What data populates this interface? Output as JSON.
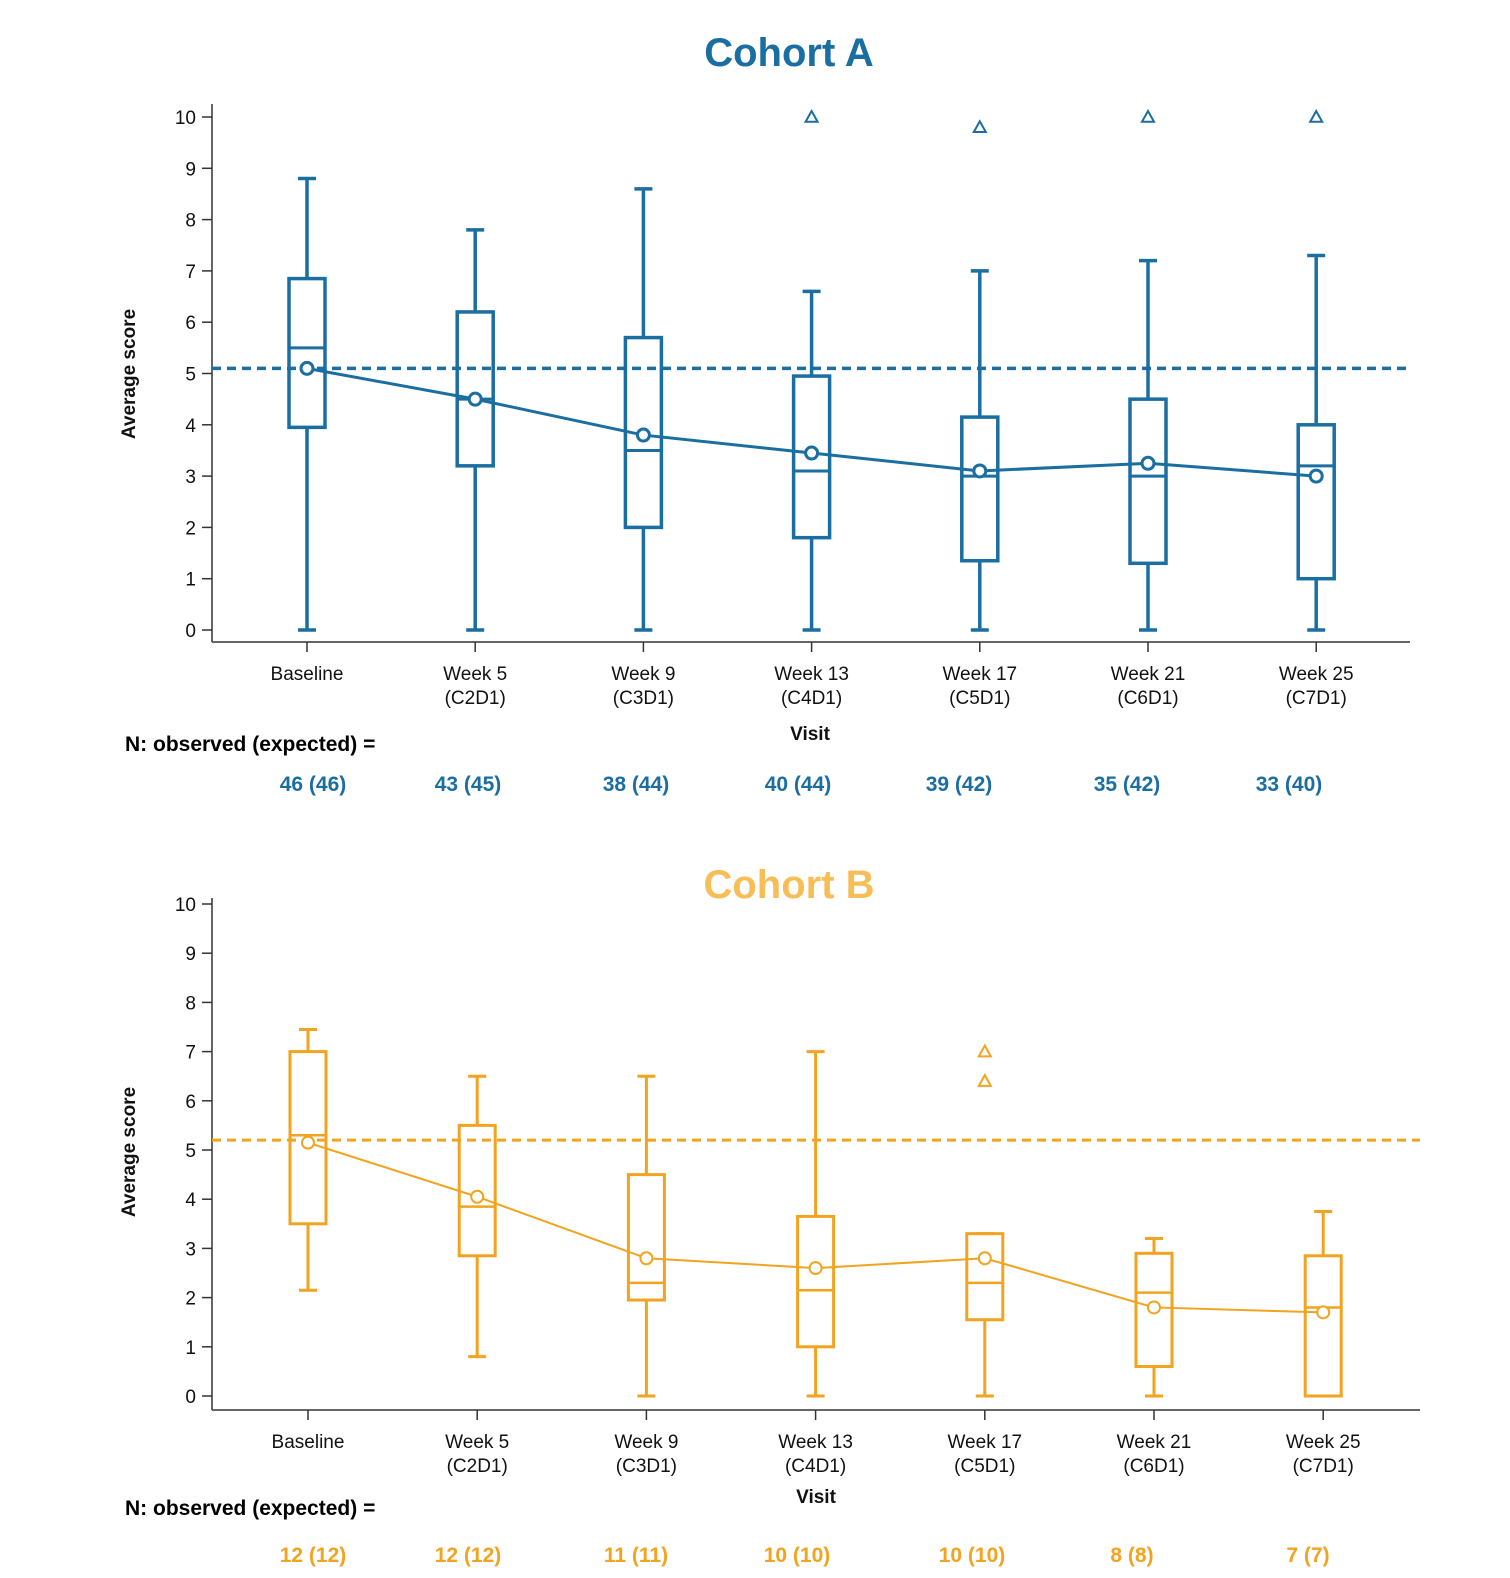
{
  "chart_data": [
    {
      "type": "box",
      "title": "Cohort A",
      "color": "#1a6ea1",
      "ylabel": "Average score",
      "xlabel": "Visit",
      "ylim": [
        0,
        10
      ],
      "yticks": [
        "0",
        "1",
        "2",
        "3",
        "4",
        "5",
        "6",
        "7",
        "8",
        "9",
        "10"
      ],
      "categories": [
        [
          "Baseline",
          ""
        ],
        [
          "Week 5",
          "(C2D1)"
        ],
        [
          "Week 9",
          "(C3D1)"
        ],
        [
          "Week 13",
          "(C4D1)"
        ],
        [
          "Week 17",
          "(C5D1)"
        ],
        [
          "Week 21",
          "(C6D1)"
        ],
        [
          "Week 25",
          "(C7D1)"
        ]
      ],
      "boxes": [
        {
          "min": 0,
          "q1": 3.95,
          "median": 5.5,
          "q3": 6.85,
          "max": 8.8,
          "mean": 5.1,
          "outliers": []
        },
        {
          "min": 0,
          "q1": 3.2,
          "median": 4.5,
          "q3": 6.2,
          "max": 7.8,
          "mean": 4.5,
          "outliers": []
        },
        {
          "min": 0,
          "q1": 2.0,
          "median": 3.5,
          "q3": 5.7,
          "max": 8.6,
          "mean": 3.8,
          "outliers": []
        },
        {
          "min": 0,
          "q1": 1.8,
          "median": 3.1,
          "q3": 4.95,
          "max": 6.6,
          "mean": 3.45,
          "outliers": [
            10.0
          ]
        },
        {
          "min": 0,
          "q1": 1.35,
          "median": 3.0,
          "q3": 4.15,
          "max": 7.0,
          "mean": 3.1,
          "outliers": [
            9.8
          ]
        },
        {
          "min": 0,
          "q1": 1.3,
          "median": 3.0,
          "q3": 4.5,
          "max": 7.2,
          "mean": 3.25,
          "outliers": [
            10.0
          ]
        },
        {
          "min": 0,
          "q1": 1.0,
          "median": 3.2,
          "q3": 4.0,
          "max": 7.3,
          "mean": 3.0,
          "outliers": [
            10.0
          ]
        }
      ],
      "reference_line": 5.1,
      "n_label": "N: observed (expected) =",
      "n_counts": [
        "46 (46)",
        "43 (45)",
        "38 (44)",
        "40 (44)",
        "39 (42)",
        "35 (42)",
        "33 (40)"
      ]
    },
    {
      "type": "box",
      "title": "Cohort B",
      "color": "#f2a31f",
      "title_color": "#f7bd57",
      "ylabel": "Average score",
      "xlabel": "Visit",
      "ylim": [
        0,
        10
      ],
      "yticks": [
        "0",
        "1",
        "2",
        "3",
        "4",
        "5",
        "6",
        "7",
        "8",
        "9",
        "10"
      ],
      "categories": [
        [
          "Baseline",
          ""
        ],
        [
          "Week 5",
          "(C2D1)"
        ],
        [
          "Week 9",
          "(C3D1)"
        ],
        [
          "Week 13",
          "(C4D1)"
        ],
        [
          "Week 17",
          "(C5D1)"
        ],
        [
          "Week 21",
          "(C6D1)"
        ],
        [
          "Week 25",
          "(C7D1)"
        ]
      ],
      "boxes": [
        {
          "min": 2.15,
          "q1": 3.5,
          "median": 5.3,
          "q3": 7.0,
          "max": 7.45,
          "mean": 5.15,
          "outliers": []
        },
        {
          "min": 0.8,
          "q1": 2.85,
          "median": 3.85,
          "q3": 5.5,
          "max": 6.5,
          "mean": 4.05,
          "outliers": []
        },
        {
          "min": 0,
          "q1": 1.95,
          "median": 2.3,
          "q3": 4.5,
          "max": 6.5,
          "mean": 2.8,
          "outliers": []
        },
        {
          "min": 0,
          "q1": 1.0,
          "median": 2.15,
          "q3": 3.65,
          "max": 7.0,
          "mean": 2.6,
          "outliers": []
        },
        {
          "min": 0,
          "q1": 1.55,
          "median": 2.3,
          "q3": 3.3,
          "max": 3.3,
          "mean": 2.8,
          "outliers": [
            7.0,
            6.4
          ]
        },
        {
          "min": 0,
          "q1": 0.6,
          "median": 2.1,
          "q3": 2.9,
          "max": 3.2,
          "mean": 1.8,
          "outliers": []
        },
        {
          "min": 0,
          "q1": 0,
          "median": 1.8,
          "q3": 2.85,
          "max": 3.75,
          "mean": 1.7,
          "outliers": []
        }
      ],
      "reference_line": 5.2,
      "n_label": "N: observed (expected) =",
      "n_counts": [
        "12 (12)",
        "12 (12)",
        "11 (11)",
        "10 (10)",
        "10 (10)",
        "8 (8)",
        "7 (7)"
      ]
    }
  ]
}
